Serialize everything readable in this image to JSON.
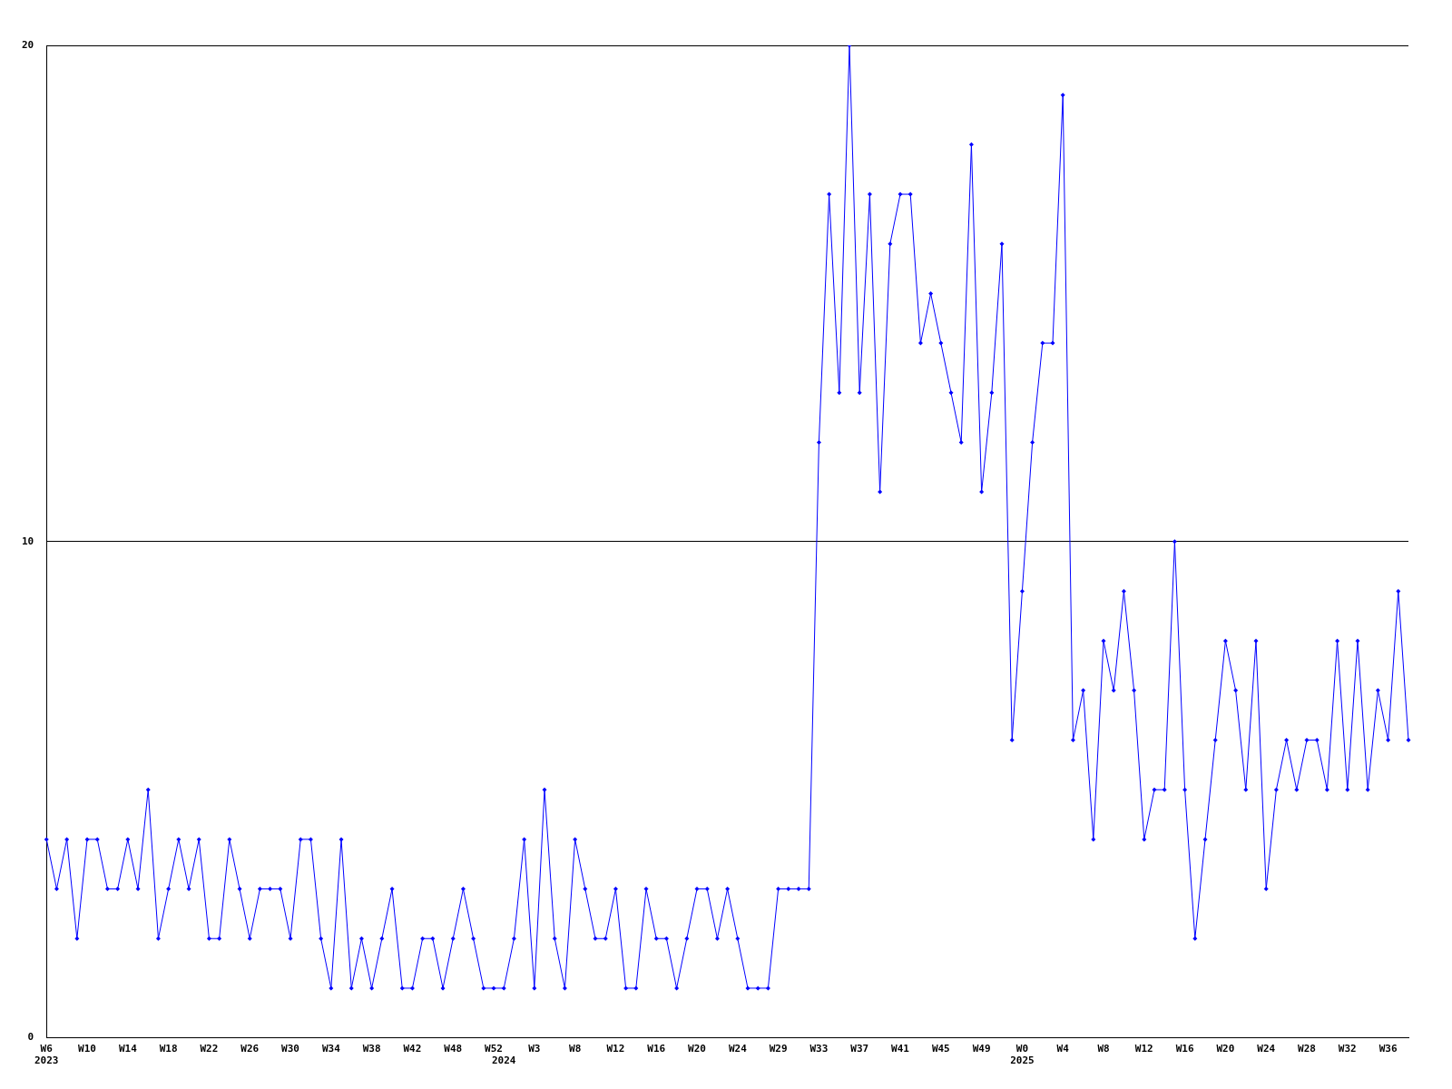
{
  "chart_data": {
    "type": "line",
    "categories": [
      "W6\n2023",
      null,
      null,
      null,
      "W10",
      null,
      null,
      null,
      "W14",
      null,
      null,
      null,
      "W18",
      null,
      null,
      null,
      "W22",
      null,
      null,
      null,
      "W26",
      null,
      null,
      null,
      "W30",
      null,
      null,
      null,
      "W34",
      null,
      null,
      null,
      "W38",
      null,
      null,
      null,
      "W42",
      null,
      null,
      null,
      "W48",
      null,
      null,
      null,
      "W52",
      "\n2024",
      null,
      null,
      "W3",
      null,
      null,
      null,
      "W8",
      null,
      null,
      null,
      "W12",
      null,
      null,
      null,
      "W16",
      null,
      null,
      null,
      "W20",
      null,
      null,
      null,
      "W24",
      null,
      null,
      null,
      "W29",
      null,
      null,
      null,
      "W33",
      null,
      null,
      null,
      "W37",
      null,
      null,
      null,
      "W41",
      null,
      null,
      null,
      "W45",
      null,
      null,
      null,
      "W49",
      null,
      null,
      null,
      "W0\n2025",
      null,
      null,
      null,
      "W4",
      null,
      null,
      null,
      "W8",
      null,
      null,
      null,
      "W12",
      null,
      null,
      null,
      "W16",
      null,
      null,
      null,
      "W20",
      null,
      null,
      null,
      "W24",
      null,
      null,
      null,
      "W28",
      null,
      null,
      null,
      "W32",
      null,
      null,
      null,
      "W36",
      null,
      null
    ],
    "series": [
      {
        "color": "#0000ff",
        "values": [
          4,
          3,
          4,
          2,
          4,
          4,
          3,
          3,
          4,
          3,
          5,
          2,
          3,
          4,
          3,
          4,
          2,
          2,
          4,
          3,
          2,
          3,
          3,
          3,
          2,
          4,
          4,
          2,
          1,
          4,
          1,
          2,
          1,
          2,
          3,
          1,
          1,
          2,
          2,
          1,
          2,
          3,
          2,
          1,
          1,
          1,
          2,
          4,
          1,
          5,
          2,
          1,
          4,
          3,
          2,
          2,
          3,
          1,
          1,
          3,
          2,
          2,
          1,
          2,
          3,
          3,
          2,
          3,
          2,
          1,
          1,
          1,
          3,
          3,
          3,
          3,
          12,
          17,
          13,
          20,
          13,
          17,
          11,
          16,
          17,
          17,
          14,
          15,
          14,
          13,
          12,
          18,
          11,
          13,
          16,
          6,
          9,
          12,
          14,
          14,
          19,
          6,
          7,
          4,
          8,
          7,
          9,
          7,
          4,
          5,
          5,
          10,
          5,
          2,
          4,
          6,
          8,
          7,
          5,
          8,
          3,
          5,
          6,
          5,
          6,
          6,
          5,
          8,
          5,
          8,
          5,
          7,
          6,
          9,
          6
        ]
      }
    ],
    "ylim": [
      0,
      20
    ],
    "yticks": [
      0,
      10,
      20
    ],
    "grid": "y",
    "marker": "diamond",
    "line_style": "solid"
  }
}
